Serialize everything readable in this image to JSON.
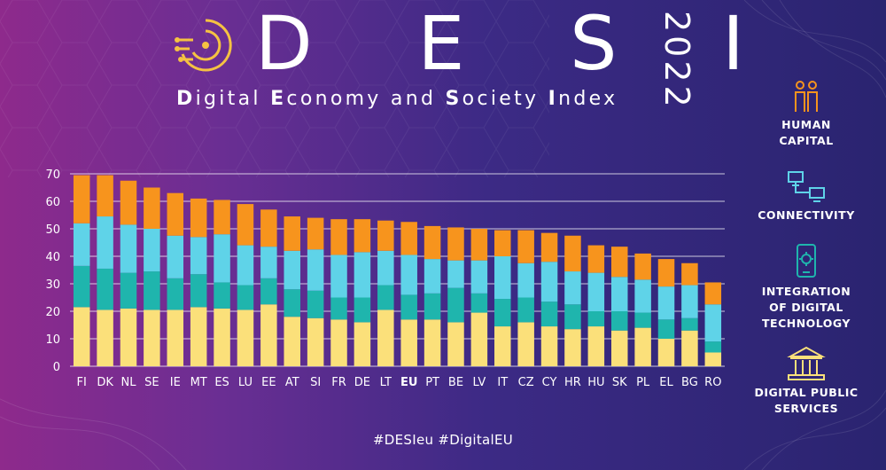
{
  "header": {
    "title": "D E S I",
    "year": "2022",
    "subtitle_parts": [
      {
        "text": "D",
        "bold": true
      },
      {
        "text": "igital ",
        "bold": false
      },
      {
        "text": "E",
        "bold": true
      },
      {
        "text": "conomy and ",
        "bold": false
      },
      {
        "text": "S",
        "bold": true
      },
      {
        "text": "ociety ",
        "bold": false
      },
      {
        "text": "I",
        "bold": true
      },
      {
        "text": "ndex",
        "bold": false
      }
    ]
  },
  "legend": [
    {
      "label": "HUMAN\nCAPITAL",
      "icon": "people-icon",
      "color": "#f7941d"
    },
    {
      "label": "CONNECTIVITY",
      "icon": "network-icon",
      "color": "#5fd3e8"
    },
    {
      "label": "INTEGRATION\nOF DIGITAL\nTECHNOLOGY",
      "icon": "smartphone-gear-icon",
      "color": "#1fb5ad"
    },
    {
      "label": "DIGITAL PUBLIC\nSERVICES",
      "icon": "public-building-icon",
      "color": "#fbe07a"
    }
  ],
  "footer": {
    "hashtags": "#DESIeu  #DigitalEU"
  },
  "chart_data": {
    "type": "bar",
    "stacked": true,
    "categories": [
      "FI",
      "DK",
      "NL",
      "SE",
      "IE",
      "MT",
      "ES",
      "LU",
      "EE",
      "AT",
      "SI",
      "FR",
      "DE",
      "LT",
      "EU",
      "PT",
      "BE",
      "LV",
      "IT",
      "CZ",
      "CY",
      "HR",
      "HU",
      "SK",
      "PL",
      "EL",
      "BG",
      "RO"
    ],
    "highlight_category": "EU",
    "ylim": [
      0,
      70
    ],
    "yticks": [
      0,
      10,
      20,
      30,
      40,
      50,
      60,
      70
    ],
    "grid": true,
    "series": [
      {
        "name": "DIGITAL PUBLIC SERVICES",
        "color": "#fbe07a",
        "values": [
          21.5,
          20.5,
          21,
          20.5,
          20.5,
          21.5,
          21,
          20.5,
          22.5,
          18,
          17.5,
          17,
          16,
          20.5,
          17,
          17,
          16,
          19.5,
          14.5,
          16,
          14.5,
          13.5,
          14.5,
          13,
          14,
          10,
          13,
          5
        ]
      },
      {
        "name": "INTEGRATION OF DIGITAL TECHNOLOGY",
        "color": "#1fb5ad",
        "values": [
          15,
          15,
          13,
          14,
          11.5,
          12,
          9.5,
          9,
          9.5,
          10,
          10,
          8,
          9,
          9,
          9,
          9.5,
          12.5,
          7,
          10,
          9,
          9,
          9,
          5.5,
          7,
          5.5,
          7,
          4.5,
          4
        ]
      },
      {
        "name": "CONNECTIVITY",
        "color": "#5fd3e8",
        "values": [
          15.5,
          19,
          17.5,
          15.5,
          15.5,
          13.5,
          17.5,
          14.5,
          11.5,
          14,
          15,
          15.5,
          16.5,
          12.5,
          14.5,
          12.5,
          10,
          12,
          15.5,
          12.5,
          14.5,
          12,
          14,
          12.5,
          12,
          12,
          12,
          13.5
        ]
      },
      {
        "name": "HUMAN CAPITAL",
        "color": "#f7941d",
        "values": [
          17.5,
          15,
          16,
          15,
          15.5,
          14,
          12.5,
          15,
          13.5,
          12.5,
          11.5,
          13,
          12,
          11,
          12,
          12,
          12,
          11.5,
          9.5,
          12,
          10.5,
          13,
          10,
          11,
          9.5,
          10,
          8,
          8
        ]
      }
    ]
  }
}
